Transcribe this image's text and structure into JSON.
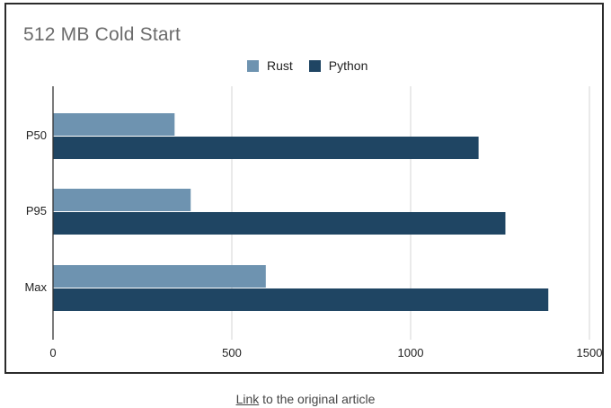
{
  "chart_data": {
    "type": "bar",
    "orientation": "horizontal",
    "title": "512 MB Cold Start",
    "categories": [
      "P50",
      "P95",
      "Max"
    ],
    "series": [
      {
        "name": "Rust",
        "color": "#6e93b0",
        "values": [
          340,
          385,
          595
        ]
      },
      {
        "name": "Python",
        "color": "#1f4563",
        "values": [
          1190,
          1265,
          1385
        ]
      }
    ],
    "xlim": [
      0,
      1500
    ],
    "xticks": [
      "0",
      "500",
      "1000",
      "1500"
    ],
    "grid": true,
    "legend_position": "top-center"
  },
  "caption": {
    "link_text": "Link",
    "rest_text": " to the original article"
  }
}
